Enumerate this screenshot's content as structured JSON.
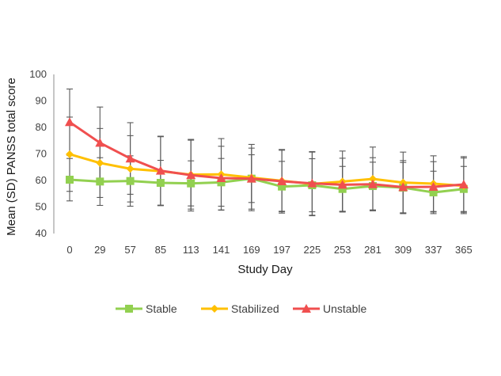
{
  "chart_data": {
    "type": "line",
    "title": "",
    "xlabel": "Study Day",
    "ylabel": "Mean (SD) PANSS total score",
    "ylim": [
      40,
      100
    ],
    "yticks": [
      "40",
      "50",
      "60",
      "70",
      "80",
      "90",
      "100"
    ],
    "categories": [
      "0",
      "29",
      "57",
      "85",
      "113",
      "141",
      "169",
      "197",
      "225",
      "253",
      "281",
      "309",
      "337",
      "365"
    ],
    "grid": false,
    "legend_position": "bottom",
    "series": [
      {
        "name": "Stable",
        "color": "#92d050",
        "marker": "square",
        "values": [
          60.3,
          59.6,
          59.8,
          59.1,
          58.9,
          59.3,
          60.7,
          57.7,
          58.2,
          56.8,
          57.9,
          57.3,
          55.5,
          56.8
        ],
        "sd": [
          8.0,
          9.0,
          9.5,
          8.5,
          8.5,
          9.0,
          9.0,
          9.5,
          10.0,
          8.5,
          9.0,
          9.5,
          8.0,
          8.5
        ]
      },
      {
        "name": "Stabilized",
        "color": "#ffc000",
        "marker": "diamond",
        "values": [
          69.9,
          66.6,
          64.4,
          63.5,
          62.2,
          62.3,
          61.1,
          59.9,
          58.7,
          59.6,
          60.6,
          59.2,
          58.8,
          58.0
        ],
        "sd": [
          14.0,
          13.0,
          12.5,
          13.0,
          13.0,
          13.5,
          12.5,
          11.5,
          12.0,
          11.5,
          12.0,
          11.5,
          10.5,
          10.5
        ]
      },
      {
        "name": "Unstable",
        "color": "#f04f4f",
        "marker": "triangle",
        "values": [
          82.0,
          74.2,
          68.3,
          63.7,
          62.0,
          60.9,
          60.7,
          59.7,
          58.9,
          58.4,
          58.6,
          57.5,
          57.6,
          58.5
        ],
        "sd": [
          12.5,
          13.5,
          13.5,
          13.0,
          13.5,
          12.0,
          11.5,
          12.0,
          12.0,
          10.0,
          10.0,
          10.0,
          9.5,
          10.5
        ]
      }
    ]
  }
}
